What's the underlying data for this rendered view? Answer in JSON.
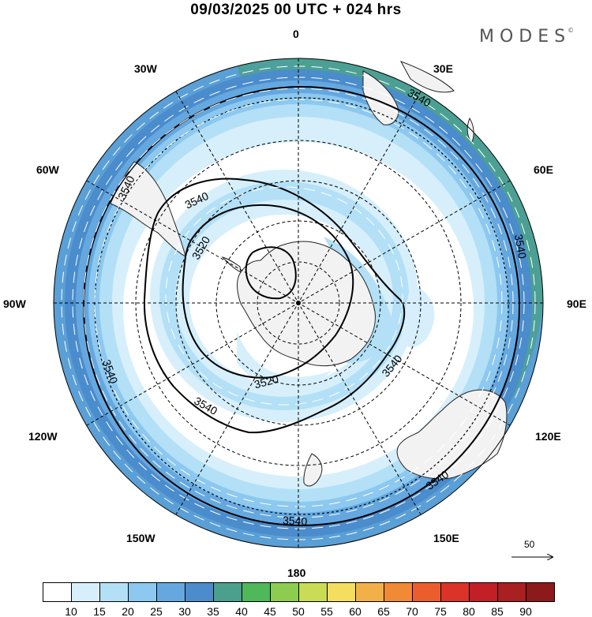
{
  "title": "09/03/2025  00 UTC  + 024 hrs",
  "brand": "MODES",
  "brand_mark": "©",
  "longitude_labels": {
    "top": "0",
    "bottom": "180",
    "left": "90W",
    "right": "90E",
    "upper_left_1": "30W",
    "upper_left_2": "60W",
    "upper_right_1": "30E",
    "upper_right_2": "60E",
    "lower_left_1": "120W",
    "lower_left_2": "150W",
    "lower_right_1": "120E",
    "lower_right_2": "150E"
  },
  "contour_labels": [
    "3540",
    "3540",
    "3540",
    "3540",
    "3540",
    "3540",
    "3540",
    "3520",
    "3520",
    "3540",
    "3540"
  ],
  "reference_vector": {
    "label": "50"
  },
  "colorbar": {
    "levels": [
      "10",
      "15",
      "20",
      "25",
      "30",
      "35",
      "40",
      "45",
      "50",
      "55",
      "60",
      "65",
      "70",
      "75",
      "80",
      "85",
      "90"
    ],
    "colors": [
      "#ffffff",
      "#d6effb",
      "#b3e0f6",
      "#8cc8ef",
      "#65a8e0",
      "#4a8ccc",
      "#4aa08c",
      "#4fb85a",
      "#8ccd50",
      "#c8dc55",
      "#f5dd5f",
      "#f3b048",
      "#f08a34",
      "#eb5e2c",
      "#db3327",
      "#c21f27",
      "#a8201f",
      "#8c1a1a"
    ]
  },
  "colors": {
    "land": "#f2f2f2",
    "coast": "#222222",
    "contour": "#000000",
    "graticule": "#000000",
    "vector": "#ffffff"
  }
}
